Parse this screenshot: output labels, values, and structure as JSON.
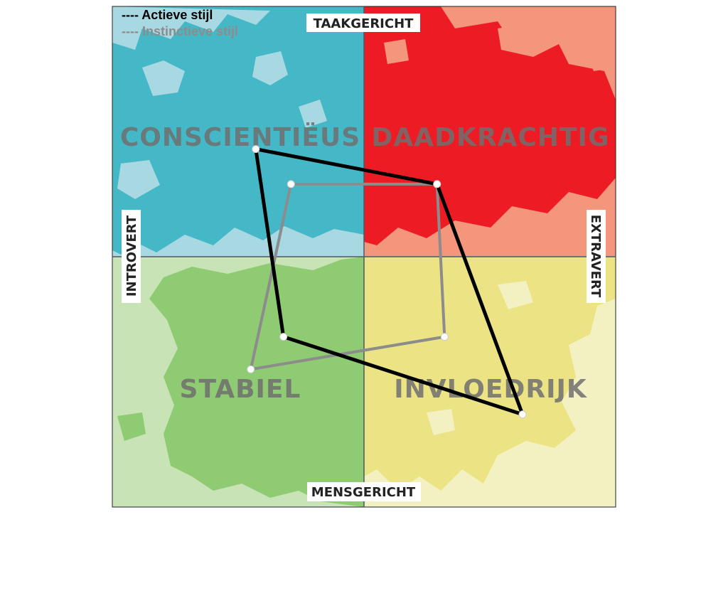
{
  "chart_data": {
    "type": "scatter",
    "axes": {
      "top": "TAAKGERICHT",
      "bottom": "MENSGERICHT",
      "left": "INTROVERT",
      "right": "EXTRAVERT"
    },
    "quadrants": [
      {
        "position": "top-left",
        "label": "CONSCIENTIËUS",
        "color_dark": "#45b8c8",
        "color_light": "#a8d9e2"
      },
      {
        "position": "top-right",
        "label": "DAADKRACHTIG",
        "color_dark": "#ed1c24",
        "color_light": "#f4967b"
      },
      {
        "position": "bottom-left",
        "label": "STABIEL",
        "color_dark": "#8ecb72",
        "color_light": "#c8e3b5"
      },
      {
        "position": "bottom-right",
        "label": "INVLOEDRIJK",
        "color_dark": "#ebe384",
        "color_light": "#f3f1c1"
      }
    ],
    "legend_position": "top-left",
    "series": [
      {
        "name": "---- Actieve stijl",
        "color": "#000000",
        "points": [
          [
            -0.43,
            0.43
          ],
          [
            0.29,
            0.29
          ],
          [
            0.63,
            -0.63
          ],
          [
            -0.32,
            -0.32
          ]
        ]
      },
      {
        "name": "---- Instinctieve stijl",
        "color": "#8c8c8c",
        "points": [
          [
            -0.29,
            0.29
          ],
          [
            0.29,
            0.29
          ],
          [
            0.32,
            -0.32
          ],
          [
            -0.45,
            -0.45
          ]
        ]
      }
    ],
    "xlim": [
      -1,
      1
    ],
    "ylim": [
      -1,
      1
    ]
  }
}
